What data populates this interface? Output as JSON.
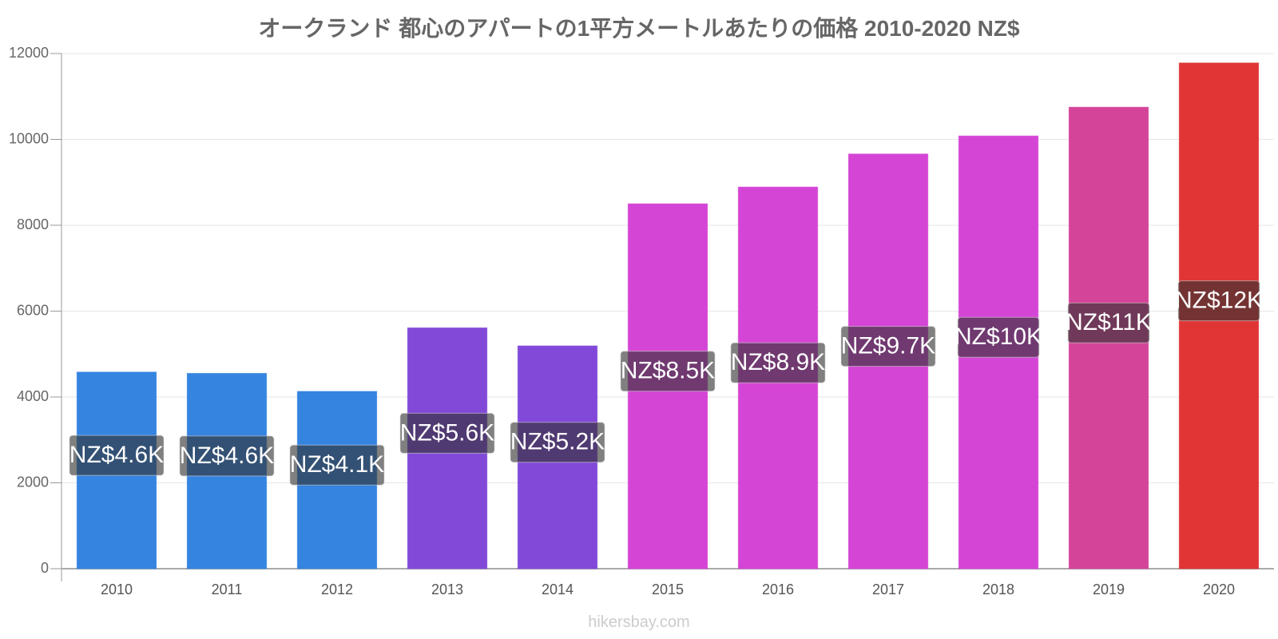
{
  "chart_data": {
    "type": "bar",
    "title": "オークランド 都心のアパートの1平方メートルあたりの価格 2010-2020 NZ$",
    "xlabel": "",
    "ylabel": "",
    "ylim": [
      0,
      12000
    ],
    "yticks": [
      "0",
      "2000",
      "4000",
      "6000",
      "8000",
      "10000",
      "12000"
    ],
    "grid": true,
    "categories": [
      "2010",
      "2011",
      "2012",
      "2013",
      "2014",
      "2015",
      "2016",
      "2017",
      "2018",
      "2019",
      "2020"
    ],
    "values": [
      4580,
      4550,
      4130,
      5610,
      5190,
      8500,
      8890,
      9660,
      10080,
      10750,
      11780
    ],
    "data_labels": [
      "NZ$4.6K",
      "NZ$4.6K",
      "NZ$4.1K",
      "NZ$5.6K",
      "NZ$5.2K",
      "NZ$8.5K",
      "NZ$8.9K",
      "NZ$9.7K",
      "NZ$10K",
      "NZ$11K",
      "NZ$12K"
    ],
    "colors": [
      "#3584e0",
      "#3584e0",
      "#3584e0",
      "#8249d9",
      "#8249d9",
      "#d545d5",
      "#d545d5",
      "#d545d5",
      "#d545d5",
      "#d44499",
      "#e03535"
    ]
  },
  "watermark": "hikersbay.com"
}
